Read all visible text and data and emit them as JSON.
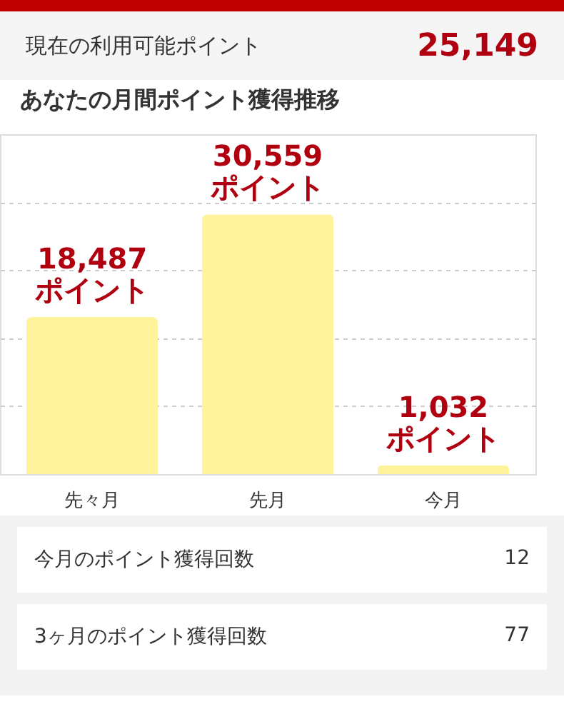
{
  "chart_data": {
    "type": "bar",
    "title": "あなたの月間ポイント獲得推移",
    "categories": [
      "先々月",
      "先月",
      "今月"
    ],
    "values": [
      18487,
      30559,
      1032
    ],
    "color": "#fff39b",
    "value_labels": [
      "18,487\nポイント",
      "30,559\nポイント",
      "1,032\nポイント"
    ],
    "ylim": [
      0,
      40000
    ],
    "yticks": [
      {
        "value": 0,
        "label": null
      },
      {
        "value": 8000,
        "label": null
      },
      {
        "value": 16000,
        "label": null
      },
      {
        "value": 24000,
        "label": null
      },
      {
        "value": 32000,
        "label": null
      }
    ],
    "grid": "y",
    "tick_labels": "x",
    "annotations": [
      "現在の利用可能ポイント",
      "25,149",
      "今月のポイント獲得回数",
      "12",
      "3ヶ月のポイント獲得回数",
      "77"
    ]
  }
}
